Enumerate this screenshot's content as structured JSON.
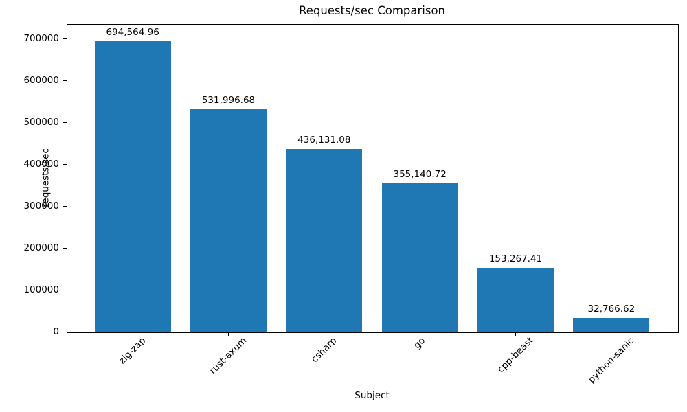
{
  "chart_data": {
    "type": "bar",
    "title": "Requests/sec Comparison",
    "xlabel": "Subject",
    "ylabel": "requests/sec",
    "categories": [
      "zig-zap",
      "rust-axum",
      "csharp",
      "go",
      "cpp-beast",
      "python-sanic"
    ],
    "values": [
      694564.96,
      531996.68,
      436131.08,
      355140.72,
      153267.41,
      32766.62
    ],
    "bar_labels": [
      "694,564.96",
      "531,996.68",
      "436,131.08",
      "355,140.72",
      "153,267.41",
      "32,766.62"
    ],
    "yticks": [
      0,
      100000,
      200000,
      300000,
      400000,
      500000,
      600000,
      700000
    ],
    "ytick_labels": [
      "0",
      "100000",
      "200000",
      "300000",
      "400000",
      "500000",
      "600000",
      "700000"
    ],
    "ylim": [
      0,
      735000
    ],
    "x_tick_rotation_deg": 45,
    "bar_color": "#1f77b4",
    "spine_color": "#000000",
    "text_color": "#000000",
    "background_color": "#ffffff",
    "grid": false,
    "legend": null
  }
}
